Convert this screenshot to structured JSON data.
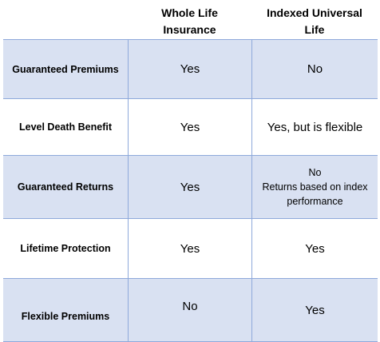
{
  "headers": {
    "col1": [
      "Whole Life",
      "Insurance"
    ],
    "col2": [
      "Indexed Universal",
      "Life"
    ]
  },
  "rows": [
    {
      "feature": "Guaranteed Premiums",
      "whole_life": "Yes",
      "iul": "No"
    },
    {
      "feature": "Level Death Benefit",
      "whole_life": "Yes",
      "iul": "Yes, but is flexible"
    },
    {
      "feature": "Guaranteed Returns",
      "whole_life": "Yes",
      "iul_lines": [
        "No",
        "Returns based on index",
        "performance"
      ]
    },
    {
      "feature": "Lifetime Protection",
      "whole_life": "Yes",
      "iul": "Yes"
    },
    {
      "feature": "Flexible Premiums",
      "whole_life": "No",
      "iul": "Yes"
    }
  ],
  "colors": {
    "row_shade": "#d9e1f2",
    "border": "#8ea9db"
  }
}
